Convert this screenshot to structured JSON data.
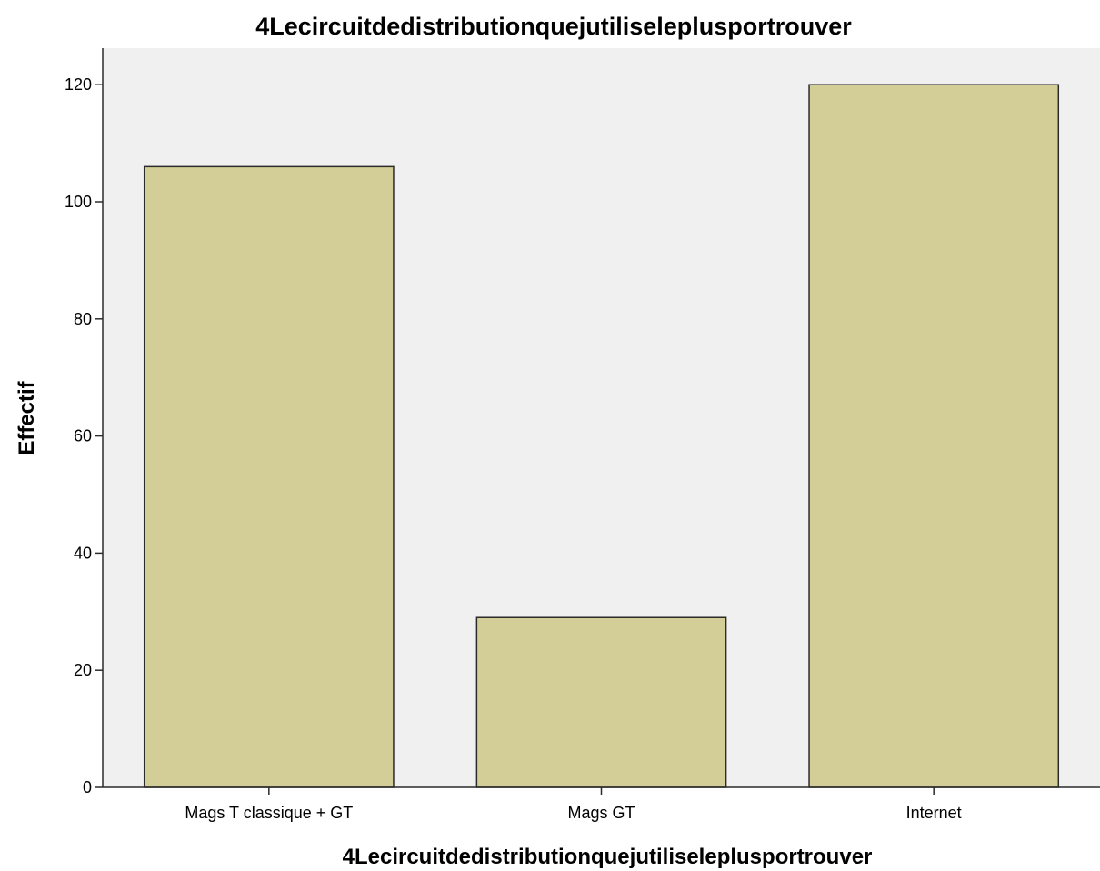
{
  "chart_data": {
    "type": "bar",
    "title": "4Lecircuitdedistributionquejutiliseleplusportrouver",
    "xlabel": "4Lecircuitdedistributionquejutiliseleplusportrouver",
    "ylabel": "Effectif",
    "categories": [
      "Mags T classique + GT",
      "Mags GT",
      "Internet"
    ],
    "values": [
      106,
      29,
      120
    ],
    "ylim": [
      0,
      126
    ],
    "yticks": [
      0,
      20,
      40,
      60,
      80,
      100,
      120
    ],
    "grid": false,
    "legend": "none",
    "colors": {
      "bar_fill": "#d3cd97",
      "bar_stroke": "#2b2b2b",
      "plot_background": "#f0f0f0",
      "axis": "#2b2b2b"
    }
  }
}
